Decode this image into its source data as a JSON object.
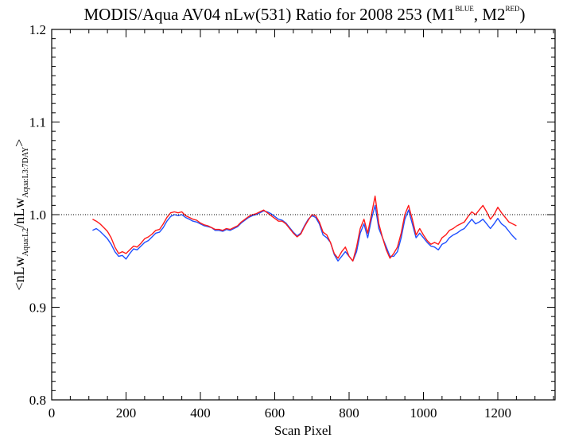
{
  "chart_data": {
    "type": "line",
    "title": {
      "main": "MODIS/Aqua AV04 nLw(531) Ratio for 2008 253 (M1",
      "sup1": "BLUE",
      "mid": ", M2",
      "sup2": "RED",
      "end": ")"
    },
    "xlabel": "Scan Pixel",
    "ylabel": {
      "open": "<nLw",
      "sub1": "Aqua:L2",
      "slash": "/nLw",
      "sub2": "Aqua:L3:7DAY",
      "close": ">"
    },
    "xlim": [
      0,
      1354
    ],
    "ylim": [
      0.8,
      1.2
    ],
    "x_ticks": [
      0,
      200,
      400,
      600,
      800,
      1000,
      1200
    ],
    "x_tick_labels": [
      "0",
      "200",
      "400",
      "600",
      "800",
      "1000",
      "1200"
    ],
    "y_ticks": [
      0.8,
      0.9,
      1.0,
      1.1,
      1.2
    ],
    "y_tick_labels": [
      "0.8",
      "0.9",
      "1.0",
      "1.1",
      "1.2"
    ],
    "reference_line": 1.0,
    "reference_style": "dotted",
    "grid": false,
    "legend": "none",
    "colors": {
      "M1": "#1f4fff",
      "M2": "#ff1a1a",
      "axis": "#000000"
    },
    "x": [
      110,
      120,
      130,
      140,
      150,
      160,
      170,
      180,
      190,
      200,
      210,
      220,
      230,
      240,
      250,
      260,
      270,
      280,
      290,
      300,
      310,
      320,
      330,
      340,
      350,
      360,
      370,
      380,
      390,
      400,
      410,
      420,
      430,
      440,
      450,
      460,
      470,
      480,
      490,
      500,
      510,
      520,
      530,
      540,
      550,
      560,
      570,
      580,
      590,
      600,
      610,
      620,
      630,
      640,
      650,
      660,
      670,
      680,
      690,
      700,
      710,
      720,
      730,
      740,
      750,
      760,
      770,
      780,
      790,
      800,
      810,
      820,
      830,
      840,
      850,
      860,
      870,
      880,
      890,
      900,
      910,
      920,
      930,
      940,
      950,
      960,
      970,
      980,
      990,
      1000,
      1010,
      1020,
      1030,
      1040,
      1050,
      1060,
      1070,
      1080,
      1090,
      1100,
      1110,
      1120,
      1130,
      1140,
      1150,
      1160,
      1170,
      1180,
      1190,
      1200,
      1210,
      1220,
      1230,
      1240,
      1250
    ],
    "series": [
      {
        "name": "M1",
        "values": [
          0.983,
          0.985,
          0.982,
          0.978,
          0.974,
          0.968,
          0.96,
          0.955,
          0.956,
          0.952,
          0.958,
          0.963,
          0.962,
          0.966,
          0.97,
          0.972,
          0.976,
          0.98,
          0.981,
          0.986,
          0.993,
          0.998,
          1.0,
          0.999,
          1.0,
          0.997,
          0.995,
          0.993,
          0.992,
          0.99,
          0.988,
          0.987,
          0.986,
          0.983,
          0.983,
          0.982,
          0.984,
          0.983,
          0.985,
          0.987,
          0.991,
          0.994,
          0.997,
          0.999,
          1.0,
          1.002,
          1.004,
          1.003,
          1.001,
          0.998,
          0.995,
          0.994,
          0.991,
          0.986,
          0.981,
          0.977,
          0.98,
          0.988,
          0.995,
          0.999,
          0.997,
          0.99,
          0.978,
          0.975,
          0.97,
          0.957,
          0.95,
          0.955,
          0.96,
          0.955,
          0.95,
          0.96,
          0.98,
          0.99,
          0.975,
          0.995,
          1.01,
          0.985,
          0.975,
          0.965,
          0.955,
          0.955,
          0.96,
          0.975,
          0.995,
          1.005,
          0.99,
          0.975,
          0.98,
          0.975,
          0.97,
          0.966,
          0.965,
          0.962,
          0.968,
          0.97,
          0.975,
          0.978,
          0.98,
          0.983,
          0.985,
          0.99,
          0.995,
          0.99,
          0.992,
          0.995,
          0.99,
          0.985,
          0.99,
          0.996,
          0.99,
          0.987,
          0.982,
          0.977,
          0.973
        ]
      },
      {
        "name": "M2",
        "values": [
          0.995,
          0.993,
          0.99,
          0.986,
          0.982,
          0.975,
          0.965,
          0.958,
          0.96,
          0.958,
          0.962,
          0.966,
          0.965,
          0.969,
          0.974,
          0.976,
          0.979,
          0.983,
          0.984,
          0.99,
          0.997,
          1.002,
          1.003,
          1.002,
          1.003,
          0.999,
          0.997,
          0.995,
          0.994,
          0.991,
          0.989,
          0.988,
          0.986,
          0.984,
          0.984,
          0.983,
          0.985,
          0.984,
          0.986,
          0.988,
          0.992,
          0.995,
          0.998,
          1.0,
          1.001,
          1.003,
          1.005,
          1.002,
          0.999,
          0.996,
          0.993,
          0.993,
          0.99,
          0.985,
          0.98,
          0.976,
          0.979,
          0.987,
          0.994,
          1.0,
          0.999,
          0.992,
          0.981,
          0.978,
          0.97,
          0.958,
          0.953,
          0.96,
          0.965,
          0.955,
          0.95,
          0.965,
          0.985,
          0.995,
          0.98,
          1.0,
          1.02,
          0.99,
          0.975,
          0.962,
          0.953,
          0.958,
          0.965,
          0.98,
          1.0,
          1.01,
          0.995,
          0.978,
          0.985,
          0.978,
          0.972,
          0.968,
          0.97,
          0.968,
          0.975,
          0.978,
          0.983,
          0.985,
          0.988,
          0.99,
          0.992,
          0.998,
          1.003,
          1.0,
          1.005,
          1.01,
          1.003,
          0.995,
          1.0,
          1.008,
          1.002,
          0.997,
          0.992,
          0.99,
          0.988
        ]
      }
    ]
  }
}
